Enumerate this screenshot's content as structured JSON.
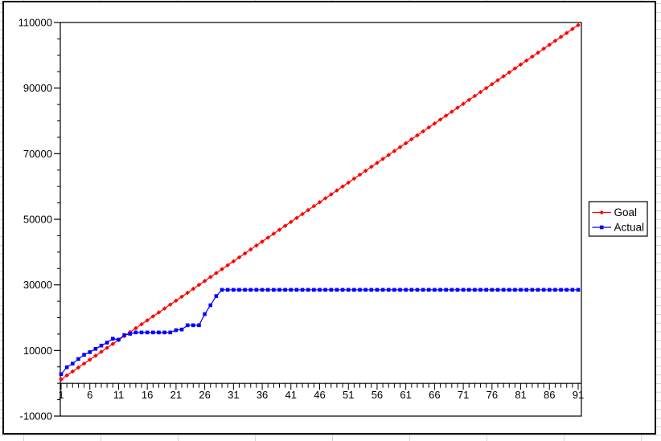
{
  "window": {
    "background_color": "#ffffff",
    "gridline_color": "#d4d4d4",
    "chart_border_color": "#000000",
    "chart_fill_color": "#ffffff"
  },
  "chart_data": {
    "type": "line",
    "title": "",
    "xlabel": "",
    "ylabel": "",
    "grid": false,
    "legend_position": "right",
    "ylim": [
      -10000,
      110000
    ],
    "y_major_step": 20000,
    "y_minor_step": 5000,
    "y_tick_labels": [
      "-10000",
      "10000",
      "30000",
      "50000",
      "70000",
      "90000",
      "110000"
    ],
    "x_range": [
      1,
      91
    ],
    "x_major_step": 5,
    "x_tick_labels": [
      "1",
      "6",
      "11",
      "16",
      "21",
      "26",
      "31",
      "36",
      "41",
      "46",
      "51",
      "56",
      "61",
      "66",
      "71",
      "76",
      "81",
      "86",
      "91"
    ],
    "series": [
      {
        "name": "Goal",
        "color": "#ff0000",
        "marker": "diamond",
        "values": [
          1200,
          2400,
          3600,
          4800,
          6000,
          7200,
          8400,
          9600,
          10800,
          12000,
          13200,
          14400,
          15600,
          16800,
          18000,
          19200,
          20400,
          21600,
          22800,
          24000,
          25200,
          26400,
          27600,
          28800,
          30000,
          31200,
          32400,
          33600,
          34800,
          36000,
          37200,
          38400,
          39600,
          40800,
          42000,
          43200,
          44400,
          45600,
          46800,
          48000,
          49200,
          50400,
          51600,
          52800,
          54000,
          55200,
          56400,
          57600,
          58800,
          60000,
          61200,
          62400,
          63600,
          64800,
          66000,
          67200,
          68400,
          69600,
          70800,
          72000,
          73200,
          74400,
          75600,
          76800,
          78000,
          79200,
          80400,
          81600,
          82800,
          84000,
          85200,
          86400,
          87600,
          88800,
          90000,
          91200,
          92400,
          93600,
          94800,
          96000,
          97200,
          98400,
          99600,
          100800,
          102000,
          103200,
          104400,
          105600,
          106800,
          108000,
          109200
        ]
      },
      {
        "name": "Actual",
        "color": "#0000ff",
        "marker": "square",
        "values": [
          2800,
          4900,
          6000,
          7400,
          8700,
          9500,
          10500,
          11500,
          12400,
          13600,
          13300,
          14700,
          15100,
          15500,
          15500,
          15500,
          15500,
          15500,
          15500,
          15500,
          16200,
          16400,
          17700,
          17700,
          17700,
          21100,
          23800,
          26600,
          28500,
          28500,
          28500,
          28500,
          28500,
          28500,
          28500,
          28500,
          28500,
          28500,
          28500,
          28500,
          28500,
          28500,
          28500,
          28500,
          28500,
          28500,
          28500,
          28500,
          28500,
          28500,
          28500,
          28500,
          28500,
          28500,
          28500,
          28500,
          28500,
          28500,
          28500,
          28500,
          28500,
          28500,
          28500,
          28500,
          28500,
          28500,
          28500,
          28500,
          28500,
          28500,
          28500,
          28500,
          28500,
          28500,
          28500,
          28500,
          28500,
          28500,
          28500,
          28500,
          28500,
          28500,
          28500,
          28500,
          28500,
          28500,
          28500,
          28500,
          28500,
          28500,
          28500
        ]
      }
    ]
  },
  "legend": {
    "items": [
      {
        "label": "Goal",
        "color": "#ff0000",
        "marker": "diamond"
      },
      {
        "label": "Actual",
        "color": "#0000ff",
        "marker": "square"
      }
    ]
  }
}
